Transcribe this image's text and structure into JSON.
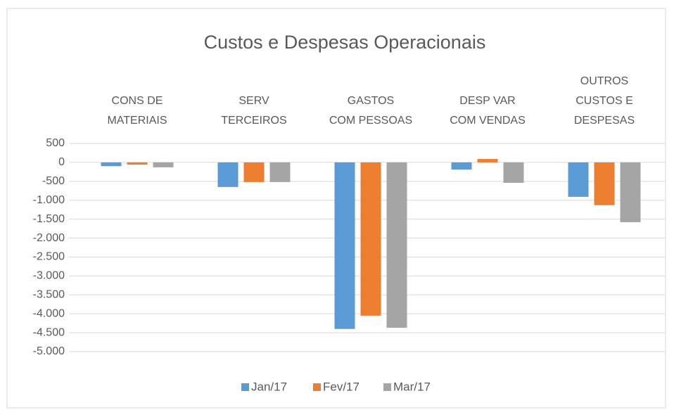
{
  "chart_data": {
    "type": "bar",
    "title": "Custos e Despesas Operacionais",
    "categories": [
      "CONS DE\nMATERIAIS",
      "SERV\nTERCEIROS",
      "GASTOS\nCOM PESSOAS",
      "DESP VAR\nCOM VENDAS",
      "OUTROS\nCUSTOS E\nDESPESAS"
    ],
    "series": [
      {
        "name": "Jan/17",
        "color": "#5b9bd5",
        "values": [
          -100,
          -650,
          -4400,
          -190,
          -910
        ]
      },
      {
        "name": "Fev/17",
        "color": "#ed7d31",
        "values": [
          -60,
          -520,
          -4050,
          90,
          -1130
        ]
      },
      {
        "name": "Mar/17",
        "color": "#a5a5a5",
        "values": [
          -130,
          -520,
          -4370,
          -540,
          -1580
        ]
      }
    ],
    "ylim": [
      -5000,
      500
    ],
    "yticks": [
      500,
      0,
      -500,
      {
        "value": -1000,
        "label": "-1.000"
      },
      {
        "value": -1500,
        "label": "-1.500"
      },
      {
        "value": -2000,
        "label": "-2.000"
      },
      {
        "value": -2500,
        "label": "-2.500"
      },
      {
        "value": -3000,
        "label": "-3.000"
      },
      {
        "value": -3500,
        "label": "-3.500"
      },
      {
        "value": -4000,
        "label": "-4.000"
      },
      {
        "value": -4500,
        "label": "-4.500"
      },
      {
        "value": -5000,
        "label": "-5.000"
      }
    ],
    "grid": true,
    "legend": "bottom"
  }
}
